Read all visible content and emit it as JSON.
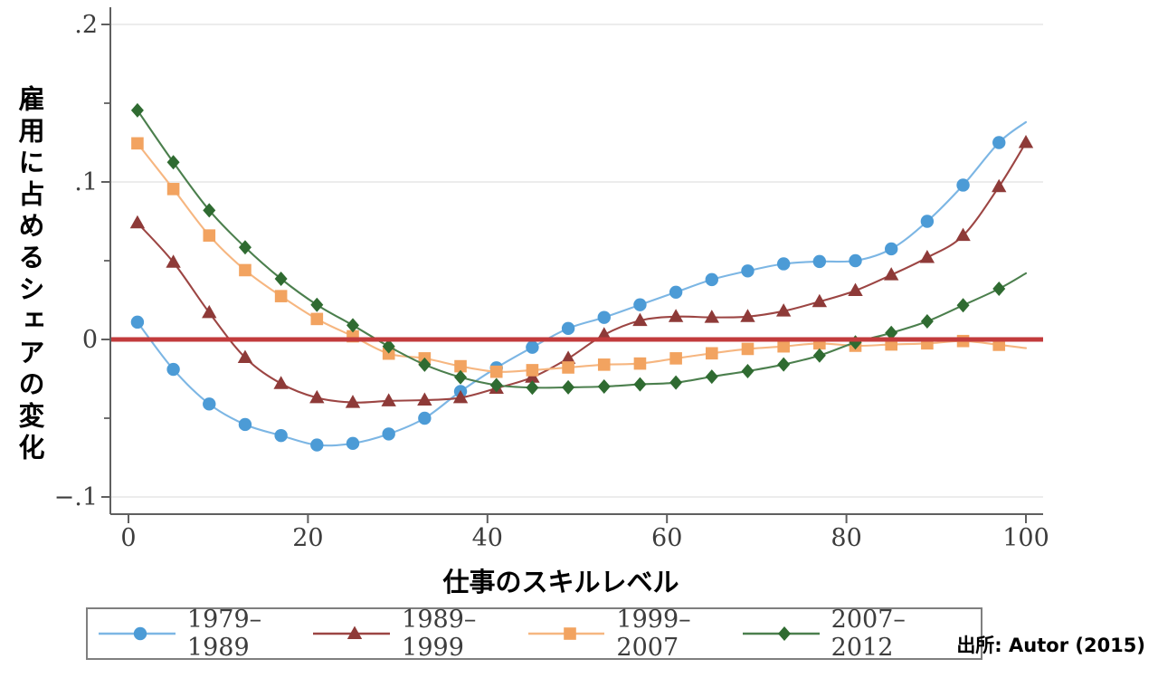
{
  "figure": {
    "y_axis_label": "雇用に占めるシェアの変化",
    "x_axis_label": "仕事のスキルレベル",
    "source_note": "出所: Autor (2015)"
  },
  "chart_data": {
    "type": "line",
    "title": "",
    "xlabel": "仕事のスキルレベル",
    "ylabel": "雇用に占めるシェアの変化",
    "xlim": [
      -2,
      102
    ],
    "ylim": [
      -0.111,
      0.211
    ],
    "grid": true,
    "legend_position": "bottom",
    "x_ticks": [
      0,
      20,
      40,
      60,
      80,
      100
    ],
    "y_ticks": [
      {
        "label": ".2",
        "value": 0.2
      },
      {
        "label": ".1",
        "value": 0.1
      },
      {
        "label": "0",
        "value": 0
      },
      {
        "label": "−.1",
        "value": -0.1
      }
    ],
    "y_minor_ticks": [
      0.15,
      0.05,
      -0.05
    ],
    "x": [
      1,
      5,
      9,
      13,
      17,
      21,
      25,
      29,
      33,
      37,
      41,
      45,
      49,
      53,
      57,
      61,
      65,
      69,
      73,
      77,
      81,
      85,
      89,
      93,
      97,
      100
    ],
    "series": [
      {
        "name": "1979–1989",
        "marker": "circle",
        "marker_color": "#4c9bd6",
        "line_color": "#7cb6e4",
        "marker_at_last": false,
        "values": [
          0.011,
          -0.019,
          -0.041,
          -0.054,
          -0.061,
          -0.067,
          -0.066,
          -0.06,
          -0.05,
          -0.033,
          -0.018,
          -0.005,
          0.007,
          0.014,
          0.022,
          0.03,
          0.038,
          0.0435,
          0.048,
          0.0495,
          0.05,
          0.0575,
          0.075,
          0.098,
          0.125,
          0.138
        ]
      },
      {
        "name": "1989–1999",
        "marker": "triangle",
        "marker_color": "#8e3a38",
        "line_color": "#9c4543",
        "marker_at_last": true,
        "values": [
          0.074,
          0.049,
          0.017,
          -0.0115,
          -0.028,
          -0.037,
          -0.04,
          -0.039,
          -0.0385,
          -0.037,
          -0.031,
          -0.024,
          -0.012,
          0.003,
          0.012,
          0.0145,
          0.014,
          0.0145,
          0.018,
          0.024,
          0.031,
          0.041,
          0.052,
          0.066,
          0.097,
          0.125
        ]
      },
      {
        "name": "1999–2007",
        "marker": "square",
        "marker_color": "#f2a360",
        "line_color": "#f6b680",
        "marker_at_last": false,
        "values": [
          0.1245,
          0.0955,
          0.066,
          0.044,
          0.0275,
          0.013,
          0.002,
          -0.009,
          -0.012,
          -0.017,
          -0.0205,
          -0.0195,
          -0.0178,
          -0.016,
          -0.0153,
          -0.012,
          -0.0088,
          -0.006,
          -0.0044,
          -0.0025,
          -0.004,
          -0.0032,
          -0.0025,
          -0.001,
          -0.0034,
          -0.0055
        ]
      },
      {
        "name": "2007–2012",
        "marker": "diamond",
        "marker_color": "#2f6b31",
        "line_color": "#4b7f4d",
        "marker_at_last": false,
        "values": [
          0.1455,
          0.1125,
          0.082,
          0.0585,
          0.0385,
          0.022,
          0.009,
          -0.0044,
          -0.016,
          -0.024,
          -0.029,
          -0.0306,
          -0.0304,
          -0.0299,
          -0.0285,
          -0.0274,
          -0.0236,
          -0.0201,
          -0.0159,
          -0.0102,
          -0.0019,
          0.0042,
          0.0115,
          0.0217,
          0.0322,
          0.042
        ]
      }
    ],
    "zero_line_color": "#c23b3c",
    "style": {
      "axis_color": "#5f5f5f",
      "grid_color": "#e0e0e0",
      "tick_label_color": "#3d3d3d"
    }
  }
}
